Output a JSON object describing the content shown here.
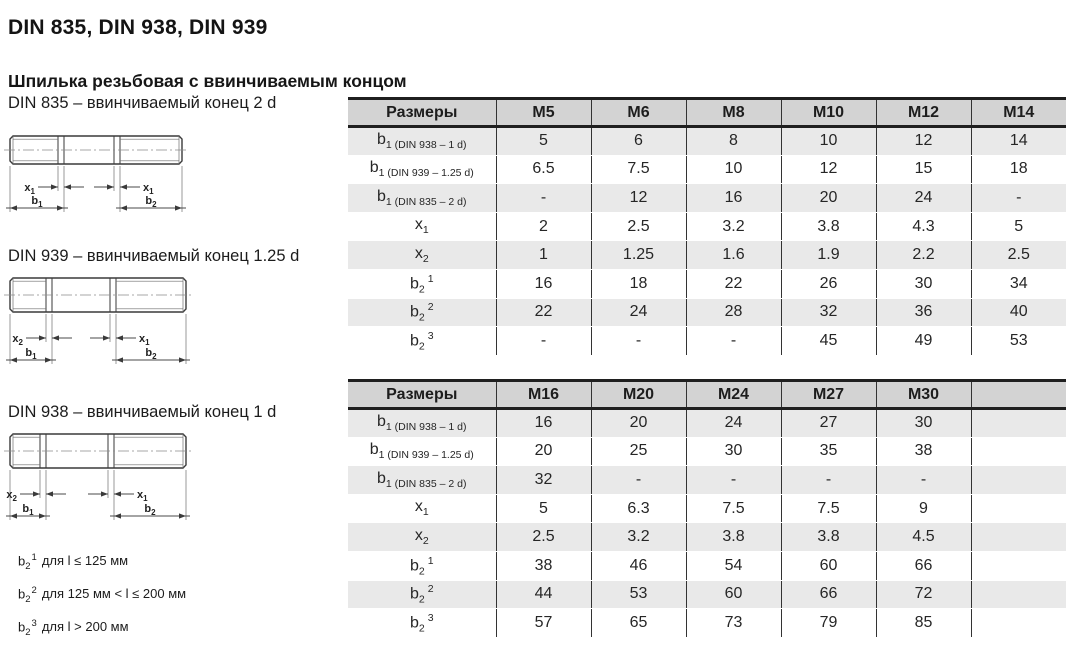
{
  "page": {
    "title": "DIN 835, DIN 938, DIN 939",
    "subtitle": "Шпилька резьбовая с ввинчиваемым концом"
  },
  "drawings": [
    {
      "caption": "DIN 835 – ввинчиваемый конец 2 d",
      "dims": {
        "x_left": {
          "base": "x",
          "sub": "1"
        },
        "x_right": {
          "base": "x",
          "sub": "1"
        },
        "b_left": {
          "base": "b",
          "sub": "1"
        },
        "b_right": {
          "base": "b",
          "sub": "2"
        }
      }
    },
    {
      "caption": "DIN 939 – ввинчиваемый конец 1.25 d",
      "dims": {
        "x_left": {
          "base": "x",
          "sub": "2"
        },
        "x_right": {
          "base": "x",
          "sub": "1"
        },
        "b_left": {
          "base": "b",
          "sub": "1"
        },
        "b_right": {
          "base": "b",
          "sub": "2"
        }
      }
    },
    {
      "caption": "DIN 938 – ввинчиваемый конец 1 d",
      "dims": {
        "x_left": {
          "base": "x",
          "sub": "2"
        },
        "x_right": {
          "base": "x",
          "sub": "1"
        },
        "b_left": {
          "base": "b",
          "sub": "1"
        },
        "b_right": {
          "base": "b",
          "sub": "2"
        }
      }
    }
  ],
  "notes": [
    {
      "symbol": {
        "base": "b",
        "sub": "2",
        "sup": "1"
      },
      "text": "для l ≤ 125 мм"
    },
    {
      "symbol": {
        "base": "b",
        "sub": "2",
        "sup": "2"
      },
      "text": "для 125 мм < l ≤ 200 мм"
    },
    {
      "symbol": {
        "base": "b",
        "sub": "2",
        "sup": "3"
      },
      "text": "для l > 200 мм"
    }
  ],
  "tables": [
    {
      "headers": [
        "Размеры",
        "M5",
        "M6",
        "M8",
        "M10",
        "M12",
        "M14"
      ],
      "rows": [
        {
          "label": {
            "base": "b",
            "sub": "1 (DIN 938 – 1 d)"
          },
          "values": [
            "5",
            "6",
            "8",
            "10",
            "12",
            "14"
          ]
        },
        {
          "label": {
            "base": "b",
            "sub": "1 (DIN 939 – 1.25 d)"
          },
          "values": [
            "6.5",
            "7.5",
            "10",
            "12",
            "15",
            "18"
          ]
        },
        {
          "label": {
            "base": "b",
            "sub": "1 (DIN 835 – 2 d)"
          },
          "values": [
            "-",
            "12",
            "16",
            "20",
            "24",
            "-"
          ]
        },
        {
          "label": {
            "base": "x",
            "sub": "1"
          },
          "values": [
            "2",
            "2.5",
            "3.2",
            "3.8",
            "4.3",
            "5"
          ]
        },
        {
          "label": {
            "base": "x",
            "sub": "2"
          },
          "values": [
            "1",
            "1.25",
            "1.6",
            "1.9",
            "2.2",
            "2.5"
          ]
        },
        {
          "label": {
            "base": "b",
            "sub": "2",
            "sup": "1"
          },
          "values": [
            "16",
            "18",
            "22",
            "26",
            "30",
            "34"
          ]
        },
        {
          "label": {
            "base": "b",
            "sub": "2",
            "sup": "2"
          },
          "values": [
            "22",
            "24",
            "28",
            "32",
            "36",
            "40"
          ]
        },
        {
          "label": {
            "base": "b",
            "sub": "2",
            "sup": "3"
          },
          "values": [
            "-",
            "-",
            "-",
            "45",
            "49",
            "53"
          ]
        }
      ]
    },
    {
      "headers": [
        "Размеры",
        "M16",
        "M20",
        "M24",
        "M27",
        "M30",
        ""
      ],
      "rows": [
        {
          "label": {
            "base": "b",
            "sub": "1 (DIN 938 – 1 d)"
          },
          "values": [
            "16",
            "20",
            "24",
            "27",
            "30",
            ""
          ]
        },
        {
          "label": {
            "base": "b",
            "sub": "1 (DIN 939 – 1.25 d)"
          },
          "values": [
            "20",
            "25",
            "30",
            "35",
            "38",
            ""
          ]
        },
        {
          "label": {
            "base": "b",
            "sub": "1 (DIN 835 – 2 d)"
          },
          "values": [
            "32",
            "-",
            "-",
            "-",
            "-",
            ""
          ]
        },
        {
          "label": {
            "base": "x",
            "sub": "1"
          },
          "values": [
            "5",
            "6.3",
            "7.5",
            "7.5",
            "9",
            ""
          ]
        },
        {
          "label": {
            "base": "x",
            "sub": "2"
          },
          "values": [
            "2.5",
            "3.2",
            "3.8",
            "3.8",
            "4.5",
            ""
          ]
        },
        {
          "label": {
            "base": "b",
            "sub": "2",
            "sup": "1"
          },
          "values": [
            "38",
            "46",
            "54",
            "60",
            "66",
            ""
          ]
        },
        {
          "label": {
            "base": "b",
            "sub": "2",
            "sup": "2"
          },
          "values": [
            "44",
            "53",
            "60",
            "66",
            "72",
            ""
          ]
        },
        {
          "label": {
            "base": "b",
            "sub": "2",
            "sup": "3"
          },
          "values": [
            "57",
            "65",
            "73",
            "79",
            "85",
            ""
          ]
        }
      ]
    }
  ],
  "colors": {
    "header_bg": "#d3d3d3",
    "row_alt_bg": "#e9e9e9",
    "border": "#1f1f1f",
    "text": "#262626"
  }
}
